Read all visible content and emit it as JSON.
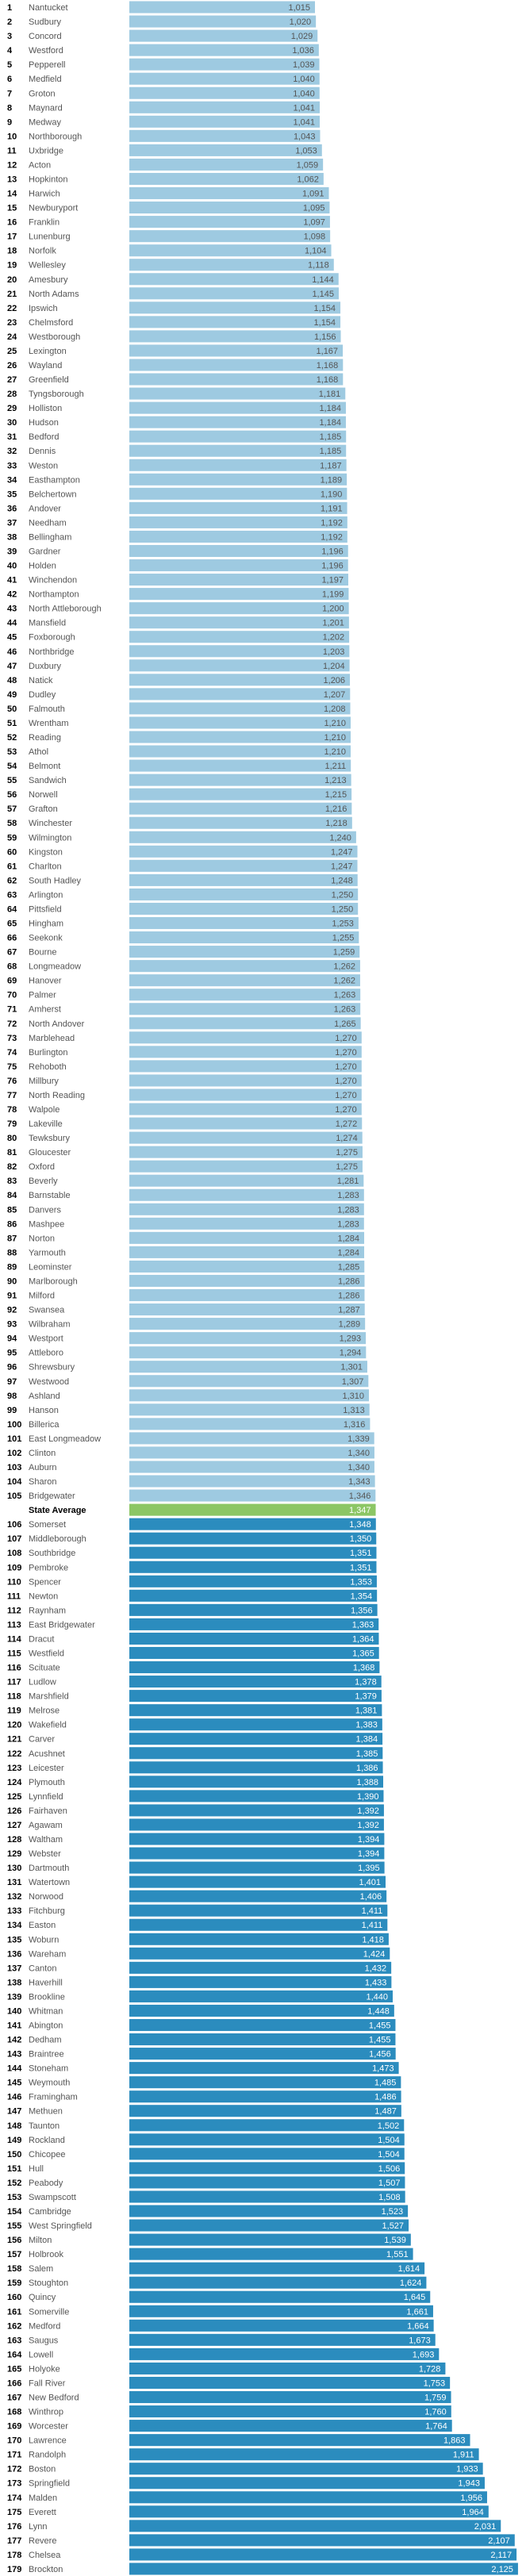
{
  "chart_data": {
    "type": "bar",
    "orientation": "horizontal",
    "title": "",
    "xlabel": "",
    "ylabel": "",
    "xlim": [
      0,
      2134
    ],
    "grid": false,
    "legend": "none",
    "colors": {
      "below_average": "#9ecae1",
      "average": "#8cc665",
      "above_average": "#2b8cbe",
      "rank_text": "#000000",
      "name_text": "#555555",
      "value_text_light": "#555555",
      "value_text_dark": "#ffffff"
    },
    "rows": [
      {
        "rank": "1",
        "name": "Nantucket",
        "value": 1015
      },
      {
        "rank": "2",
        "name": "Sudbury",
        "value": 1020
      },
      {
        "rank": "3",
        "name": "Concord",
        "value": 1029
      },
      {
        "rank": "4",
        "name": "Westford",
        "value": 1036
      },
      {
        "rank": "5",
        "name": "Pepperell",
        "value": 1039
      },
      {
        "rank": "6",
        "name": "Medfield",
        "value": 1040
      },
      {
        "rank": "7",
        "name": "Groton",
        "value": 1040
      },
      {
        "rank": "8",
        "name": "Maynard",
        "value": 1041
      },
      {
        "rank": "9",
        "name": "Medway",
        "value": 1041
      },
      {
        "rank": "10",
        "name": "Northborough",
        "value": 1043
      },
      {
        "rank": "11",
        "name": "Uxbridge",
        "value": 1053
      },
      {
        "rank": "12",
        "name": "Acton",
        "value": 1059
      },
      {
        "rank": "13",
        "name": "Hopkinton",
        "value": 1062
      },
      {
        "rank": "14",
        "name": "Harwich",
        "value": 1091
      },
      {
        "rank": "15",
        "name": "Newburyport",
        "value": 1095
      },
      {
        "rank": "16",
        "name": "Franklin",
        "value": 1097
      },
      {
        "rank": "17",
        "name": "Lunenburg",
        "value": 1098
      },
      {
        "rank": "18",
        "name": "Norfolk",
        "value": 1104
      },
      {
        "rank": "19",
        "name": "Wellesley",
        "value": 1118
      },
      {
        "rank": "20",
        "name": "Amesbury",
        "value": 1144
      },
      {
        "rank": "21",
        "name": "North Adams",
        "value": 1145
      },
      {
        "rank": "22",
        "name": "Ipswich",
        "value": 1154
      },
      {
        "rank": "23",
        "name": "Chelmsford",
        "value": 1154
      },
      {
        "rank": "24",
        "name": "Westborough",
        "value": 1156
      },
      {
        "rank": "25",
        "name": "Lexington",
        "value": 1167
      },
      {
        "rank": "26",
        "name": "Wayland",
        "value": 1168
      },
      {
        "rank": "27",
        "name": "Greenfield",
        "value": 1168
      },
      {
        "rank": "28",
        "name": "Tyngsborough",
        "value": 1181
      },
      {
        "rank": "29",
        "name": "Holliston",
        "value": 1184
      },
      {
        "rank": "30",
        "name": "Hudson",
        "value": 1184
      },
      {
        "rank": "31",
        "name": "Bedford",
        "value": 1185
      },
      {
        "rank": "32",
        "name": "Dennis",
        "value": 1185
      },
      {
        "rank": "33",
        "name": "Weston",
        "value": 1187
      },
      {
        "rank": "34",
        "name": "Easthampton",
        "value": 1189
      },
      {
        "rank": "35",
        "name": "Belchertown",
        "value": 1190
      },
      {
        "rank": "36",
        "name": "Andover",
        "value": 1191
      },
      {
        "rank": "37",
        "name": "Needham",
        "value": 1192
      },
      {
        "rank": "38",
        "name": "Bellingham",
        "value": 1192
      },
      {
        "rank": "39",
        "name": "Gardner",
        "value": 1196
      },
      {
        "rank": "40",
        "name": "Holden",
        "value": 1196
      },
      {
        "rank": "41",
        "name": "Winchendon",
        "value": 1197
      },
      {
        "rank": "42",
        "name": "Northampton",
        "value": 1199
      },
      {
        "rank": "43",
        "name": "North Attleborough",
        "value": 1200
      },
      {
        "rank": "44",
        "name": "Mansfield",
        "value": 1201
      },
      {
        "rank": "45",
        "name": "Foxborough",
        "value": 1202
      },
      {
        "rank": "46",
        "name": "Northbridge",
        "value": 1203
      },
      {
        "rank": "47",
        "name": "Duxbury",
        "value": 1204
      },
      {
        "rank": "48",
        "name": "Natick",
        "value": 1206
      },
      {
        "rank": "49",
        "name": "Dudley",
        "value": 1207
      },
      {
        "rank": "50",
        "name": "Falmouth",
        "value": 1208
      },
      {
        "rank": "51",
        "name": "Wrentham",
        "value": 1210
      },
      {
        "rank": "52",
        "name": "Reading",
        "value": 1210
      },
      {
        "rank": "53",
        "name": "Athol",
        "value": 1210
      },
      {
        "rank": "54",
        "name": "Belmont",
        "value": 1211
      },
      {
        "rank": "55",
        "name": "Sandwich",
        "value": 1213
      },
      {
        "rank": "56",
        "name": "Norwell",
        "value": 1215
      },
      {
        "rank": "57",
        "name": "Grafton",
        "value": 1216
      },
      {
        "rank": "58",
        "name": "Winchester",
        "value": 1218
      },
      {
        "rank": "59",
        "name": "Wilmington",
        "value": 1240
      },
      {
        "rank": "60",
        "name": "Kingston",
        "value": 1247
      },
      {
        "rank": "61",
        "name": "Charlton",
        "value": 1247
      },
      {
        "rank": "62",
        "name": "South Hadley",
        "value": 1248
      },
      {
        "rank": "63",
        "name": "Arlington",
        "value": 1250
      },
      {
        "rank": "64",
        "name": "Pittsfield",
        "value": 1250
      },
      {
        "rank": "65",
        "name": "Hingham",
        "value": 1253
      },
      {
        "rank": "66",
        "name": "Seekonk",
        "value": 1255
      },
      {
        "rank": "67",
        "name": "Bourne",
        "value": 1259
      },
      {
        "rank": "68",
        "name": "Longmeadow",
        "value": 1262
      },
      {
        "rank": "69",
        "name": "Hanover",
        "value": 1262
      },
      {
        "rank": "70",
        "name": "Palmer",
        "value": 1263
      },
      {
        "rank": "71",
        "name": "Amherst",
        "value": 1263
      },
      {
        "rank": "72",
        "name": "North Andover",
        "value": 1265
      },
      {
        "rank": "73",
        "name": "Marblehead",
        "value": 1270
      },
      {
        "rank": "74",
        "name": "Burlington",
        "value": 1270
      },
      {
        "rank": "75",
        "name": "Rehoboth",
        "value": 1270
      },
      {
        "rank": "76",
        "name": "Millbury",
        "value": 1270
      },
      {
        "rank": "77",
        "name": "North Reading",
        "value": 1270
      },
      {
        "rank": "78",
        "name": "Walpole",
        "value": 1270
      },
      {
        "rank": "79",
        "name": "Lakeville",
        "value": 1272
      },
      {
        "rank": "80",
        "name": "Tewksbury",
        "value": 1274
      },
      {
        "rank": "81",
        "name": "Gloucester",
        "value": 1275
      },
      {
        "rank": "82",
        "name": "Oxford",
        "value": 1275
      },
      {
        "rank": "83",
        "name": "Beverly",
        "value": 1281
      },
      {
        "rank": "84",
        "name": "Barnstable",
        "value": 1283
      },
      {
        "rank": "85",
        "name": "Danvers",
        "value": 1283
      },
      {
        "rank": "86",
        "name": "Mashpee",
        "value": 1283
      },
      {
        "rank": "87",
        "name": "Norton",
        "value": 1284
      },
      {
        "rank": "88",
        "name": "Yarmouth",
        "value": 1284
      },
      {
        "rank": "89",
        "name": "Leominster",
        "value": 1285
      },
      {
        "rank": "90",
        "name": "Marlborough",
        "value": 1286
      },
      {
        "rank": "91",
        "name": "Milford",
        "value": 1286
      },
      {
        "rank": "92",
        "name": "Swansea",
        "value": 1287
      },
      {
        "rank": "93",
        "name": "Wilbraham",
        "value": 1289
      },
      {
        "rank": "94",
        "name": "Westport",
        "value": 1293
      },
      {
        "rank": "95",
        "name": "Attleboro",
        "value": 1294
      },
      {
        "rank": "96",
        "name": "Shrewsbury",
        "value": 1301
      },
      {
        "rank": "97",
        "name": "Westwood",
        "value": 1307
      },
      {
        "rank": "98",
        "name": "Ashland",
        "value": 1310
      },
      {
        "rank": "99",
        "name": "Hanson",
        "value": 1313
      },
      {
        "rank": "100",
        "name": "Billerica",
        "value": 1316
      },
      {
        "rank": "101",
        "name": "East Longmeadow",
        "value": 1339
      },
      {
        "rank": "102",
        "name": "Clinton",
        "value": 1340
      },
      {
        "rank": "103",
        "name": "Auburn",
        "value": 1340
      },
      {
        "rank": "104",
        "name": "Sharon",
        "value": 1343
      },
      {
        "rank": "105",
        "name": "Bridgewater",
        "value": 1346
      },
      {
        "rank": "",
        "name": "State Average",
        "value": 1347,
        "average": true
      },
      {
        "rank": "106",
        "name": "Somerset",
        "value": 1348
      },
      {
        "rank": "107",
        "name": "Middleborough",
        "value": 1350
      },
      {
        "rank": "108",
        "name": "Southbridge",
        "value": 1351
      },
      {
        "rank": "109",
        "name": "Pembroke",
        "value": 1351
      },
      {
        "rank": "110",
        "name": "Spencer",
        "value": 1353
      },
      {
        "rank": "111",
        "name": "Newton",
        "value": 1354
      },
      {
        "rank": "112",
        "name": "Raynham",
        "value": 1356
      },
      {
        "rank": "113",
        "name": "East Bridgewater",
        "value": 1363
      },
      {
        "rank": "114",
        "name": "Dracut",
        "value": 1364
      },
      {
        "rank": "115",
        "name": "Westfield",
        "value": 1365
      },
      {
        "rank": "116",
        "name": "Scituate",
        "value": 1368
      },
      {
        "rank": "117",
        "name": "Ludlow",
        "value": 1378
      },
      {
        "rank": "118",
        "name": "Marshfield",
        "value": 1379
      },
      {
        "rank": "119",
        "name": "Melrose",
        "value": 1381
      },
      {
        "rank": "120",
        "name": "Wakefield",
        "value": 1383
      },
      {
        "rank": "121",
        "name": "Carver",
        "value": 1384
      },
      {
        "rank": "122",
        "name": "Acushnet",
        "value": 1385
      },
      {
        "rank": "123",
        "name": "Leicester",
        "value": 1386
      },
      {
        "rank": "124",
        "name": "Plymouth",
        "value": 1388
      },
      {
        "rank": "125",
        "name": "Lynnfield",
        "value": 1390
      },
      {
        "rank": "126",
        "name": "Fairhaven",
        "value": 1392
      },
      {
        "rank": "127",
        "name": "Agawam",
        "value": 1392
      },
      {
        "rank": "128",
        "name": "Waltham",
        "value": 1394
      },
      {
        "rank": "129",
        "name": "Webster",
        "value": 1394
      },
      {
        "rank": "130",
        "name": "Dartmouth",
        "value": 1395
      },
      {
        "rank": "131",
        "name": "Watertown",
        "value": 1401
      },
      {
        "rank": "132",
        "name": "Norwood",
        "value": 1406
      },
      {
        "rank": "133",
        "name": "Fitchburg",
        "value": 1411
      },
      {
        "rank": "134",
        "name": "Easton",
        "value": 1411
      },
      {
        "rank": "135",
        "name": "Woburn",
        "value": 1418
      },
      {
        "rank": "136",
        "name": "Wareham",
        "value": 1424
      },
      {
        "rank": "137",
        "name": "Canton",
        "value": 1432
      },
      {
        "rank": "138",
        "name": "Haverhill",
        "value": 1433
      },
      {
        "rank": "139",
        "name": "Brookline",
        "value": 1440
      },
      {
        "rank": "140",
        "name": "Whitman",
        "value": 1448
      },
      {
        "rank": "141",
        "name": "Abington",
        "value": 1455
      },
      {
        "rank": "142",
        "name": "Dedham",
        "value": 1455
      },
      {
        "rank": "143",
        "name": "Braintree",
        "value": 1456
      },
      {
        "rank": "144",
        "name": "Stoneham",
        "value": 1473
      },
      {
        "rank": "145",
        "name": "Weymouth",
        "value": 1485
      },
      {
        "rank": "146",
        "name": "Framingham",
        "value": 1486
      },
      {
        "rank": "147",
        "name": "Methuen",
        "value": 1487
      },
      {
        "rank": "148",
        "name": "Taunton",
        "value": 1502
      },
      {
        "rank": "149",
        "name": "Rockland",
        "value": 1504
      },
      {
        "rank": "150",
        "name": "Chicopee",
        "value": 1504
      },
      {
        "rank": "151",
        "name": "Hull",
        "value": 1506
      },
      {
        "rank": "152",
        "name": "Peabody",
        "value": 1507
      },
      {
        "rank": "153",
        "name": "Swampscott",
        "value": 1508
      },
      {
        "rank": "154",
        "name": "Cambridge",
        "value": 1523
      },
      {
        "rank": "155",
        "name": "West Springfield",
        "value": 1527
      },
      {
        "rank": "156",
        "name": "Milton",
        "value": 1539
      },
      {
        "rank": "157",
        "name": "Holbrook",
        "value": 1551
      },
      {
        "rank": "158",
        "name": "Salem",
        "value": 1614
      },
      {
        "rank": "159",
        "name": "Stoughton",
        "value": 1624
      },
      {
        "rank": "160",
        "name": "Quincy",
        "value": 1645
      },
      {
        "rank": "161",
        "name": "Somerville",
        "value": 1661
      },
      {
        "rank": "162",
        "name": "Medford",
        "value": 1664
      },
      {
        "rank": "163",
        "name": "Saugus",
        "value": 1673
      },
      {
        "rank": "164",
        "name": "Lowell",
        "value": 1693
      },
      {
        "rank": "165",
        "name": "Holyoke",
        "value": 1728
      },
      {
        "rank": "166",
        "name": "Fall River",
        "value": 1753
      },
      {
        "rank": "167",
        "name": "New Bedford",
        "value": 1759
      },
      {
        "rank": "168",
        "name": "Winthrop",
        "value": 1760
      },
      {
        "rank": "169",
        "name": "Worcester",
        "value": 1764
      },
      {
        "rank": "170",
        "name": "Lawrence",
        "value": 1863
      },
      {
        "rank": "171",
        "name": "Randolph",
        "value": 1911
      },
      {
        "rank": "172",
        "name": "Boston",
        "value": 1933
      },
      {
        "rank": "173",
        "name": "Springfield",
        "value": 1943
      },
      {
        "rank": "174",
        "name": "Malden",
        "value": 1956
      },
      {
        "rank": "175",
        "name": "Everett",
        "value": 1964
      },
      {
        "rank": "176",
        "name": "Lynn",
        "value": 2031
      },
      {
        "rank": "177",
        "name": "Revere",
        "value": 2107
      },
      {
        "rank": "178",
        "name": "Chelsea",
        "value": 2117
      },
      {
        "rank": "179",
        "name": "Brockton",
        "value": 2125
      }
    ]
  }
}
